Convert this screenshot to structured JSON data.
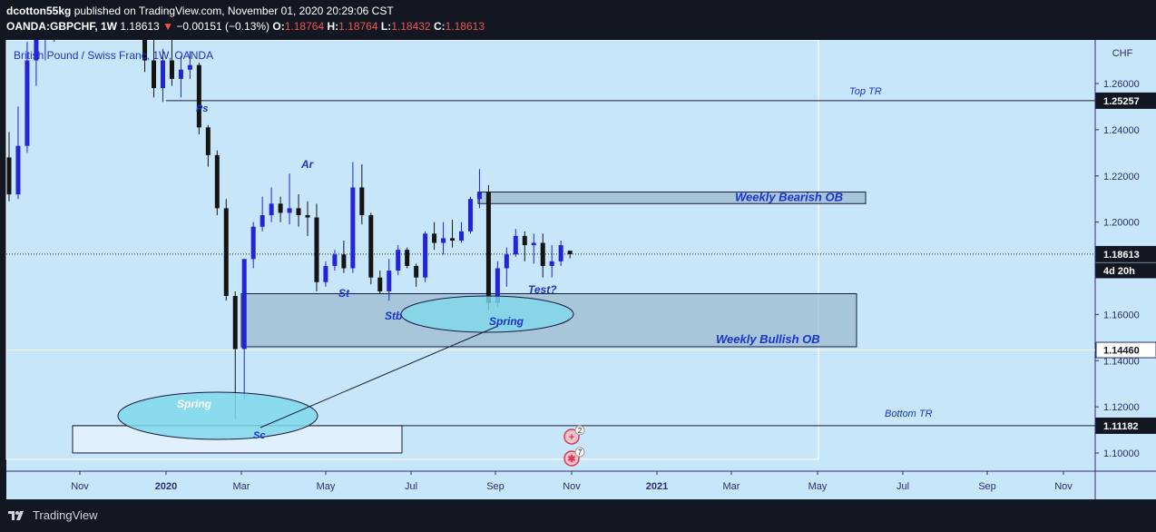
{
  "header": {
    "author": "dcotton55kg",
    "published_text": "published on TradingView.com, November 01, 2020 20:29:06 CST",
    "symbol": "OANDA:GBPCHF, 1W",
    "last": "1.18613",
    "change_arrow": "▼",
    "change": "−0.00151 (−0.13%)",
    "o_label": "O:",
    "o": "1.18764",
    "h_label": "H:",
    "h": "1.18764",
    "l_label": "L:",
    "l": "1.18432",
    "c_label": "C:",
    "c": "1.18613"
  },
  "footer": {
    "brand": "TradingView"
  },
  "colors": {
    "background": "#c8e6fa",
    "up": "#2323d8",
    "down": "#141414",
    "zone": "#9ab8cc",
    "ellipse": "#7fd8ea",
    "annotation": "#1a33cc"
  },
  "chart_data": {
    "type": "candlestick",
    "title": "British Pound / Swiss Franc, 1W, OANDA",
    "y_axis_label": "CHF",
    "ylim": [
      1.094,
      1.276
    ],
    "x_ticks": [
      "Nov",
      "2020",
      "Mar",
      "May",
      "Jul",
      "Sep",
      "Nov",
      "2021",
      "Mar",
      "May",
      "Jul",
      "Sep",
      "Nov"
    ],
    "y_ticks": [
      "1.26000",
      "1.24000",
      "1.22000",
      "1.20000",
      "1.16000",
      "1.14000",
      "1.12000",
      "1.10000"
    ],
    "price_tags": [
      {
        "text": "1.25257",
        "value": 1.25257,
        "style": "dark"
      },
      {
        "text": "1.18613",
        "value": 1.18613,
        "style": "dark"
      },
      {
        "text": "4d 20h",
        "value": 1.17903,
        "style": "dark-small"
      },
      {
        "text": "1.14460",
        "value": 1.1446,
        "style": "light"
      },
      {
        "text": "1.11182",
        "value": 1.11182,
        "style": "dark"
      }
    ],
    "candles_ohlc": [
      [
        1.228,
        1.239,
        1.209,
        1.212
      ],
      [
        1.212,
        1.25,
        1.21,
        1.233
      ],
      [
        1.233,
        1.278,
        1.23,
        1.27
      ],
      [
        1.27,
        1.29,
        1.259,
        1.28
      ],
      [
        1.28,
        1.295,
        1.27,
        1.285
      ],
      [
        1.285,
        1.299,
        1.278,
        1.295
      ],
      [
        1.295,
        1.305,
        1.285,
        1.288
      ],
      [
        1.288,
        1.3,
        1.28,
        1.296
      ],
      [
        1.296,
        1.3,
        1.287,
        1.29
      ],
      [
        1.29,
        1.298,
        1.285,
        1.293
      ],
      [
        1.293,
        1.305,
        1.29,
        1.3
      ],
      [
        1.3,
        1.302,
        1.287,
        1.288
      ],
      [
        1.288,
        1.3,
        1.282,
        1.295
      ],
      [
        1.295,
        1.301,
        1.286,
        1.29
      ],
      [
        1.29,
        1.295,
        1.28,
        1.285
      ],
      [
        1.285,
        1.29,
        1.265,
        1.27
      ],
      [
        1.27,
        1.28,
        1.254,
        1.258
      ],
      [
        1.258,
        1.275,
        1.252,
        1.27
      ],
      [
        1.27,
        1.279,
        1.259,
        1.262
      ],
      [
        1.262,
        1.272,
        1.254,
        1.266
      ],
      [
        1.266,
        1.274,
        1.262,
        1.268
      ],
      [
        1.268,
        1.269,
        1.238,
        1.241
      ],
      [
        1.241,
        1.242,
        1.224,
        1.229
      ],
      [
        1.229,
        1.231,
        1.203,
        1.206
      ],
      [
        1.206,
        1.21,
        1.166,
        1.168
      ],
      [
        1.168,
        1.17,
        1.115,
        1.145
      ],
      [
        1.145,
        1.184,
        1.123,
        1.184
      ],
      [
        1.184,
        1.2,
        1.18,
        1.198
      ],
      [
        1.198,
        1.211,
        1.196,
        1.203
      ],
      [
        1.203,
        1.215,
        1.2,
        1.208
      ],
      [
        1.208,
        1.211,
        1.2,
        1.204
      ],
      [
        1.204,
        1.221,
        1.199,
        1.206
      ],
      [
        1.206,
        1.212,
        1.198,
        1.203
      ],
      [
        1.203,
        1.209,
        1.194,
        1.202
      ],
      [
        1.202,
        1.208,
        1.17,
        1.174
      ],
      [
        1.174,
        1.183,
        1.172,
        1.181
      ],
      [
        1.181,
        1.188,
        1.179,
        1.186
      ],
      [
        1.186,
        1.192,
        1.178,
        1.18
      ],
      [
        1.18,
        1.226,
        1.178,
        1.215
      ],
      [
        1.215,
        1.225,
        1.199,
        1.203
      ],
      [
        1.203,
        1.204,
        1.173,
        1.176
      ],
      [
        1.176,
        1.179,
        1.169,
        1.17
      ],
      [
        1.17,
        1.184,
        1.166,
        1.179
      ],
      [
        1.179,
        1.19,
        1.177,
        1.188
      ],
      [
        1.188,
        1.189,
        1.18,
        1.181
      ],
      [
        1.181,
        1.182,
        1.172,
        1.176
      ],
      [
        1.176,
        1.196,
        1.174,
        1.195
      ],
      [
        1.195,
        1.2,
        1.188,
        1.191
      ],
      [
        1.191,
        1.2,
        1.186,
        1.193
      ],
      [
        1.193,
        1.201,
        1.189,
        1.192
      ],
      [
        1.192,
        1.2,
        1.191,
        1.196
      ],
      [
        1.196,
        1.211,
        1.195,
        1.21
      ],
      [
        1.21,
        1.223,
        1.206,
        1.213
      ],
      [
        1.213,
        1.216,
        1.162,
        1.165
      ],
      [
        1.165,
        1.183,
        1.163,
        1.18
      ],
      [
        1.18,
        1.189,
        1.172,
        1.186
      ],
      [
        1.186,
        1.197,
        1.185,
        1.194
      ],
      [
        1.194,
        1.196,
        1.183,
        1.19
      ],
      [
        1.19,
        1.195,
        1.182,
        1.191
      ],
      [
        1.191,
        1.195,
        1.176,
        1.181
      ],
      [
        1.181,
        1.19,
        1.176,
        1.183
      ],
      [
        1.183,
        1.192,
        1.181,
        1.19
      ],
      [
        1.1876,
        1.1876,
        1.1843,
        1.1861
      ]
    ],
    "horizontal_levels": [
      {
        "label": "Top TR",
        "value": 1.25257
      },
      {
        "label": "Bottom TR",
        "value": 1.11182
      }
    ],
    "zones": [
      {
        "label": "Weekly Bearish OB",
        "low": 1.208,
        "high": 1.213
      },
      {
        "label": "Weekly Bullish OB",
        "low": 1.146,
        "high": 1.169
      }
    ],
    "annotations": [
      "Ps",
      "Ar",
      "St",
      "Stb",
      "Test?",
      "Spring",
      "Spring",
      "Sc"
    ],
    "event_badges": [
      "2",
      "7"
    ]
  }
}
